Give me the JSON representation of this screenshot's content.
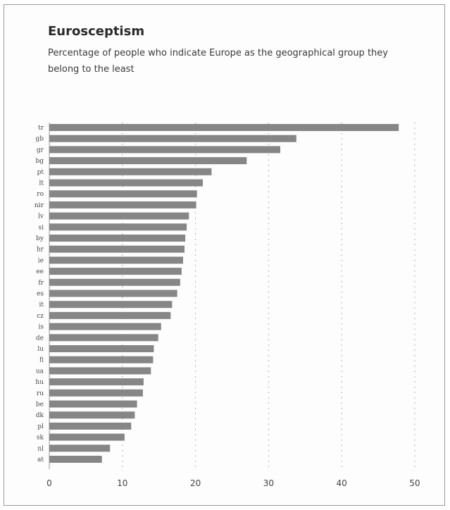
{
  "chart_data": {
    "type": "bar",
    "orientation": "horizontal",
    "title": "Eurosceptism",
    "subtitle": "Percentage of people who indicate Europe as the geographical group they belong to the least",
    "xlabel": "",
    "ylabel": "",
    "categories": [
      "tr",
      "gb",
      "gr",
      "bg",
      "pt",
      "lt",
      "ro",
      "nir",
      "lv",
      "si",
      "by",
      "hr",
      "ie",
      "ee",
      "fr",
      "es",
      "it",
      "cz",
      "is",
      "de",
      "lu",
      "fi",
      "ua",
      "hu",
      "ru",
      "be",
      "dk",
      "pl",
      "sk",
      "nl",
      "at"
    ],
    "values": [
      47.8,
      33.8,
      31.6,
      27.0,
      22.2,
      21.0,
      20.2,
      20.1,
      19.1,
      18.8,
      18.6,
      18.5,
      18.3,
      18.1,
      17.9,
      17.5,
      16.8,
      16.6,
      15.3,
      14.9,
      14.3,
      14.2,
      13.9,
      12.9,
      12.8,
      12.0,
      11.7,
      11.2,
      10.3,
      8.3,
      7.2
    ],
    "xlim": [
      0,
      50
    ],
    "xticks": [
      "0",
      "10",
      "20",
      "30",
      "40",
      "50"
    ],
    "grid": true,
    "bar_color": "#868686"
  }
}
